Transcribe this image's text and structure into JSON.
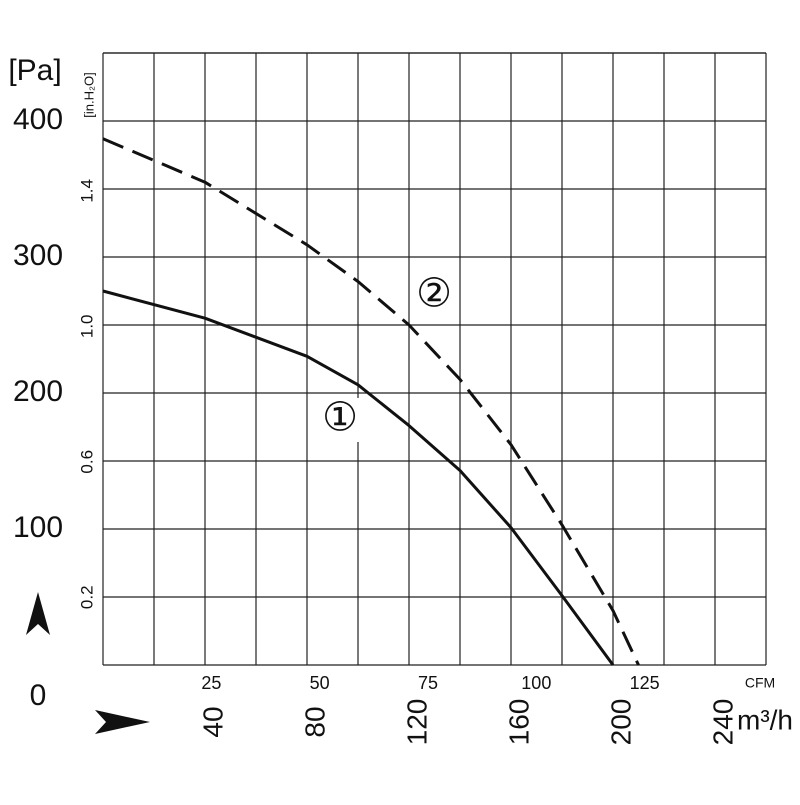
{
  "chart_data": {
    "type": "line",
    "y_label": "[Pa]",
    "y2_label": "[in.H₂O]",
    "x_label": "m³/h",
    "x2_label": "CFM",
    "xlim": [
      0,
      260
    ],
    "xticks": [
      40,
      80,
      120,
      160,
      200,
      240
    ],
    "x2lim": [
      0,
      153
    ],
    "x2ticks": [
      25,
      50,
      75,
      100,
      125
    ],
    "ylim": [
      0,
      450
    ],
    "yticks": [
      0,
      100,
      200,
      300,
      400
    ],
    "y2lim": [
      0,
      1.807
    ],
    "y2ticks": [
      0.2,
      0.6,
      {
        "value": 1.0,
        "label": "1.0"
      },
      1.4
    ],
    "grid": true,
    "x": [
      0,
      40,
      80,
      100,
      120,
      140,
      160,
      180,
      200,
      210
    ],
    "series": [
      {
        "name": "①",
        "color": "#111111",
        "dash": false,
        "values": [
          275,
          255,
          227,
          206,
          176,
          143,
          101,
          51,
          0,
          null
        ]
      },
      {
        "name": "②",
        "color": "#111111",
        "dash": true,
        "values": [
          387,
          355,
          309,
          282,
          250,
          210,
          162,
          103,
          40,
          0
        ]
      }
    ]
  }
}
